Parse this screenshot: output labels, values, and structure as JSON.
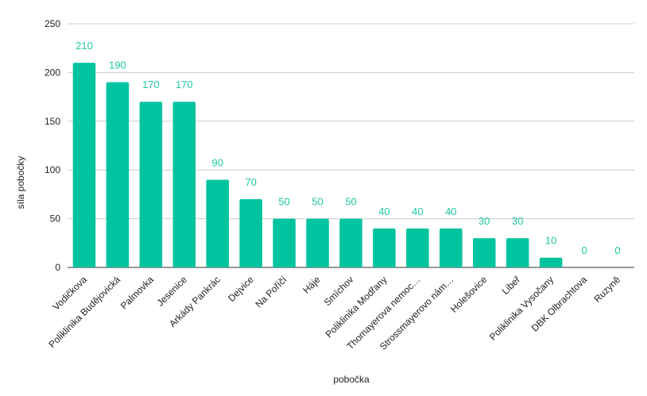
{
  "chart_data": {
    "type": "bar",
    "xlabel": "pobočka",
    "ylabel": "síla pobočky",
    "ylim": [
      0,
      250
    ],
    "yticks": [
      0,
      50,
      100,
      150,
      200,
      250
    ],
    "grid": true,
    "bar_color": "#00c49f",
    "label_color": "#1ec8a0",
    "categories": [
      "Vodičkova",
      "Poliklinika Budějovická",
      "Palmovka",
      "Jesenice",
      "Arkády Pankrác",
      "Dejvice",
      "Na Poříčí",
      "Háje",
      "Smíchov",
      "Poliklinika Modřany",
      "Thomayerova nemoc…",
      "Strossmayerovo nám…",
      "Holešovice",
      "Libeř",
      "Poliklinika Vysočany",
      "DBK Olbrachtova",
      "Ruzyně"
    ],
    "values": [
      210,
      190,
      170,
      170,
      90,
      70,
      50,
      50,
      50,
      40,
      40,
      40,
      30,
      30,
      10,
      0,
      0
    ]
  }
}
